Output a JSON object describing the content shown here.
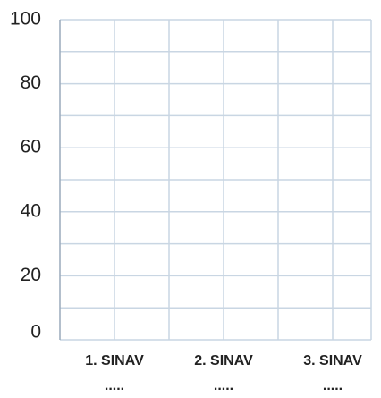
{
  "chart_data": {
    "type": "bar",
    "categories": [
      "1. SINAV",
      "2. SINAV",
      "3. SINAV"
    ],
    "values": [
      null,
      null,
      null
    ],
    "blanks": [
      ".....",
      ".....",
      "....."
    ],
    "ylim": [
      0,
      100
    ],
    "yticks": [
      0,
      20,
      40,
      60,
      80,
      100
    ],
    "minor_yticks": [
      10,
      30,
      50,
      70,
      90
    ],
    "grid": true,
    "color": "#4472c4"
  }
}
